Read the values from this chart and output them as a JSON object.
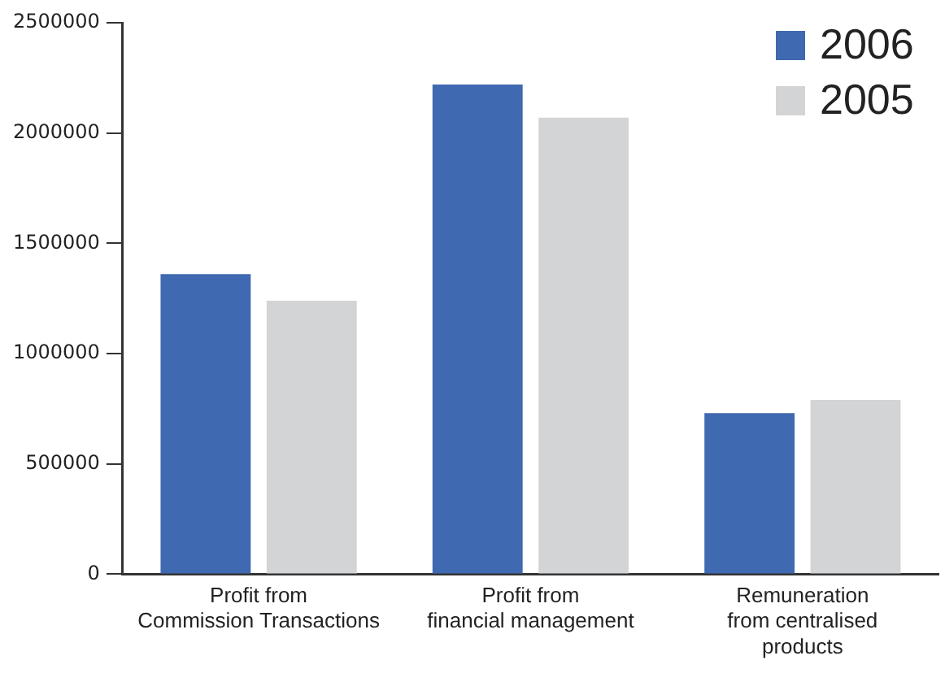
{
  "chart_data": {
    "type": "bar",
    "categories": [
      "Profit from\nCommission Transactions",
      "Profit from\nfinancial management",
      "Remuneration\nfrom centralised\nproducts"
    ],
    "series": [
      {
        "name": "2006",
        "color": "#3f69b0",
        "values": [
          1360000,
          2220000,
          730000
        ]
      },
      {
        "name": "2005",
        "color": "#d3d4d6",
        "values": [
          1240000,
          2070000,
          790000
        ]
      }
    ],
    "ylim": [
      0,
      2500000
    ],
    "yticks": [
      0,
      500000,
      1000000,
      1500000,
      2000000,
      2500000
    ],
    "grid": false,
    "legend": "top right"
  }
}
